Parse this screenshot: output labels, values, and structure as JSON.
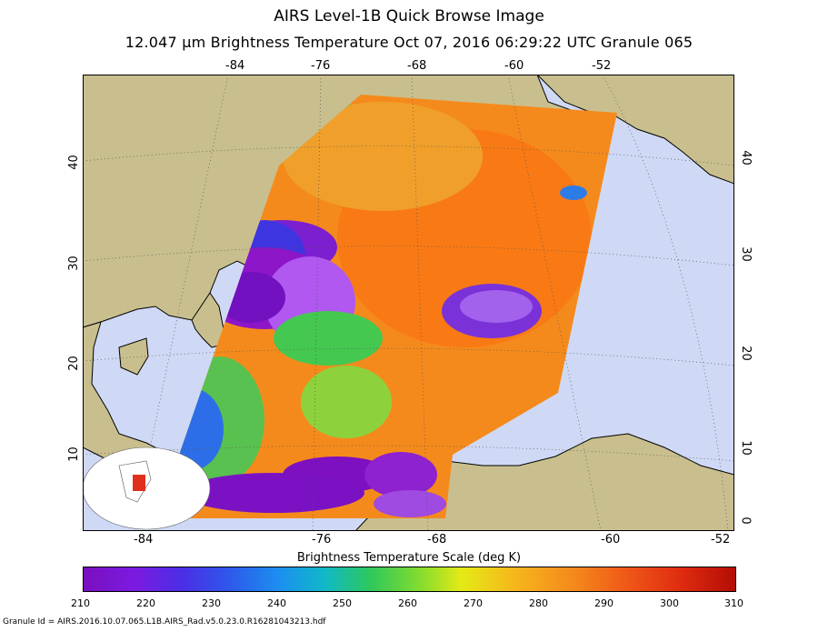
{
  "title": "AIRS Level-1B Quick Browse Image",
  "subtitle": "12.047 μm Brightness Temperature    Oct 07, 2016 06:29:22 UTC   Granule 065",
  "top_lon_ticks": [
    "-84",
    "-76",
    "-68",
    "-60",
    "-52"
  ],
  "bottom_lon_ticks": [
    "-84",
    "-76",
    "-68",
    "-60",
    "-52"
  ],
  "left_lat_ticks": [
    "40",
    "30",
    "20",
    "10"
  ],
  "right_lat_ticks": [
    "40",
    "30",
    "20",
    "10",
    "0"
  ],
  "scale": {
    "title": "Brightness Temperature Scale (deg K)",
    "ticks": [
      "210",
      "220",
      "230",
      "240",
      "250",
      "260",
      "270",
      "280",
      "290",
      "300",
      "310"
    ],
    "min": 210,
    "max": 310
  },
  "footer": "Granule Id = AIRS.2016.10.07.065.L1B.AIRS_Rad.v5.0.23.0.R16281043213.hdf",
  "colors": {
    "ocean": "#cfd9f5",
    "land": "#c9bf8e",
    "swath_warm": "#f58a1c",
    "swath_cold": "#7a0fc0"
  }
}
